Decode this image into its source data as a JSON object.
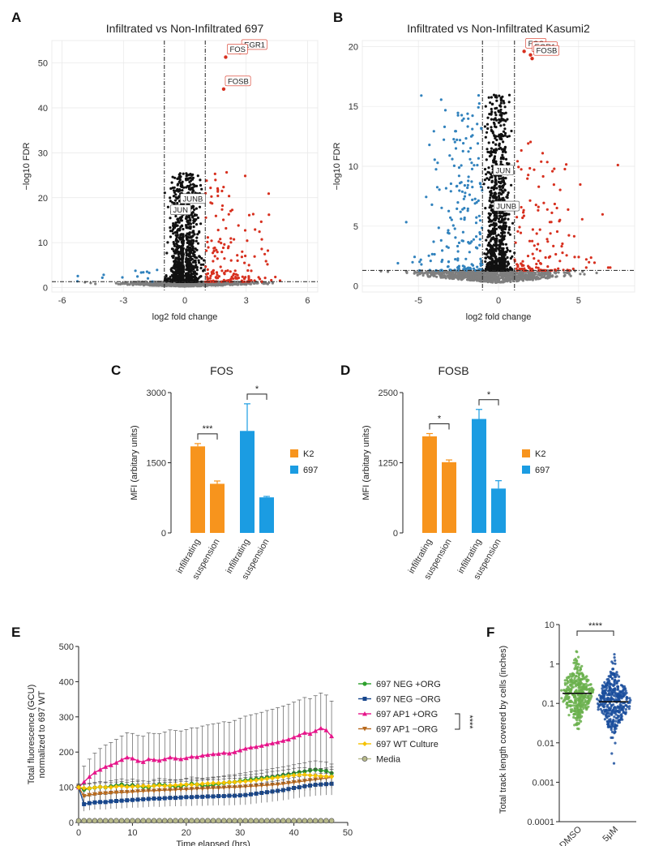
{
  "panel_labels": [
    "A",
    "B",
    "C",
    "D",
    "E",
    "F"
  ],
  "colors": {
    "up": "#d7301f",
    "down": "#3182bd",
    "ns": "#7f7f7f",
    "sig": "#111111",
    "k2": "#f7941d",
    "b697": "#1b9ce2",
    "neg_org": "#2ca02c",
    "neg_noorg": "#17468c",
    "ap1_org": "#e6158a",
    "ap1_noorg": "#b86a1e",
    "wt": "#f5c200",
    "media": "#b7b98a",
    "dmso": "#6ab04c",
    "fivem": "#1a4d9c"
  },
  "chart_data": [
    {
      "id": "A",
      "type": "scatter",
      "title": "Infiltrated vs Non-Infiltrated 697",
      "xlabel": "log2 fold change",
      "ylabel": "−log10 FDR",
      "xlim": [
        -6.5,
        6.5
      ],
      "ylim": [
        -1,
        55
      ],
      "xticks": [
        -6,
        -3,
        0,
        3,
        6
      ],
      "yticks": [
        0,
        10,
        20,
        30,
        40,
        50
      ],
      "fc_cutoff": 1,
      "fdr_cutoff": 1.3,
      "gene_labels": [
        {
          "gene": "EGR1",
          "x": 2.7,
          "y": 52.3,
          "color": "red"
        },
        {
          "gene": "FOS",
          "x": 2.0,
          "y": 51.3,
          "color": "red"
        },
        {
          "gene": "FOSB",
          "x": 1.9,
          "y": 44.2,
          "color": "red"
        },
        {
          "gene": "JUNB",
          "x": 0.4,
          "y": 18.0,
          "color": "black"
        },
        {
          "gene": "JUN",
          "x": -0.2,
          "y": 15.5,
          "color": "black"
        }
      ]
    },
    {
      "id": "B",
      "type": "scatter",
      "title": "Infiltrated vs Non-Infiltrated Kasumi2",
      "xlabel": "log2 fold change",
      "ylabel": "−log10 FDR",
      "xlim": [
        -8.5,
        8.5
      ],
      "ylim": [
        -0.5,
        20.5
      ],
      "xticks": [
        -5,
        0,
        5
      ],
      "yticks": [
        0,
        5,
        10,
        15,
        20
      ],
      "fc_cutoff": 1,
      "fdr_cutoff": 1.3,
      "gene_labels": [
        {
          "gene": "FOS",
          "x": 1.6,
          "y": 19.6,
          "color": "red"
        },
        {
          "gene": "EGR1",
          "x": 2.0,
          "y": 19.3,
          "color": "red"
        },
        {
          "gene": "FOSB",
          "x": 2.1,
          "y": 19.0,
          "color": "red"
        },
        {
          "gene": "JUN",
          "x": 0.3,
          "y": 9.0,
          "color": "black"
        },
        {
          "gene": "JUNB",
          "x": 0.5,
          "y": 6.0,
          "color": "black"
        }
      ]
    },
    {
      "id": "C",
      "type": "bar",
      "title": "FOS",
      "ylabel": "MFI (arbitary units)",
      "ylim": [
        0,
        3000
      ],
      "yticks": [
        0,
        1500,
        3000
      ],
      "categories": [
        "infiltrating",
        "suspension",
        "infiltrating",
        "suspension"
      ],
      "values": [
        1850,
        1050,
        2180,
        760
      ],
      "errors": [
        60,
        60,
        580,
        20
      ],
      "groups": [
        "K2",
        "K2",
        "697",
        "697"
      ],
      "legend": [
        "K2",
        "697"
      ],
      "significance": [
        {
          "pair": [
            0,
            1
          ],
          "label": "***"
        },
        {
          "pair": [
            2,
            3
          ],
          "label": "*"
        }
      ]
    },
    {
      "id": "D",
      "type": "bar",
      "title": "FOSB",
      "ylabel": "MFI (arbitary units)",
      "ylim": [
        0,
        2500
      ],
      "yticks": [
        0,
        1250,
        2500
      ],
      "categories": [
        "infiltrating",
        "suspension",
        "infiltrating",
        "suspension"
      ],
      "values": [
        1720,
        1260,
        2030,
        790
      ],
      "errors": [
        50,
        40,
        170,
        140
      ],
      "groups": [
        "K2",
        "K2",
        "697",
        "697"
      ],
      "legend": [
        "K2",
        "697"
      ],
      "significance": [
        {
          "pair": [
            0,
            1
          ],
          "label": "*"
        },
        {
          "pair": [
            2,
            3
          ],
          "label": "*"
        }
      ]
    },
    {
      "id": "E",
      "type": "line",
      "xlabel": "Time elapsed (hrs)",
      "ylabel_lines": [
        "Total fluorescence (GCU)",
        "normalized to 697 WT"
      ],
      "xlim": [
        0,
        50
      ],
      "ylim": [
        0,
        500
      ],
      "xticks": [
        0,
        10,
        20,
        30,
        40,
        50
      ],
      "yticks": [
        0,
        100,
        200,
        300,
        400,
        500
      ],
      "x": [
        0,
        1,
        2,
        3,
        4,
        5,
        6,
        7,
        8,
        9,
        10,
        11,
        12,
        13,
        14,
        15,
        16,
        17,
        18,
        19,
        20,
        21,
        22,
        23,
        24,
        25,
        26,
        27,
        28,
        29,
        30,
        31,
        32,
        33,
        34,
        35,
        36,
        37,
        38,
        39,
        40,
        41,
        42,
        43,
        44,
        45,
        46,
        47
      ],
      "significance": "****",
      "series": [
        {
          "name": "697 NEG +ORG",
          "marker": "circle",
          "values": [
            100,
            93,
            97,
            99,
            101,
            100,
            103,
            105,
            108,
            104,
            106,
            103,
            101,
            100,
            105,
            108,
            106,
            104,
            102,
            103,
            107,
            110,
            108,
            105,
            104,
            107,
            110,
            112,
            114,
            115,
            118,
            120,
            122,
            124,
            126,
            128,
            130,
            132,
            135,
            137,
            140,
            143,
            145,
            148,
            150,
            148,
            146,
            140
          ],
          "errors": [
            8,
            15,
            15,
            15,
            15,
            15,
            16,
            16,
            16,
            16,
            17,
            17,
            17,
            17,
            17,
            18,
            18,
            18,
            18,
            18,
            19,
            19,
            19,
            19,
            20,
            20,
            20,
            20,
            21,
            21,
            21,
            21,
            22,
            22,
            22,
            22,
            23,
            23,
            23,
            24,
            24,
            24,
            25,
            25,
            25,
            25,
            26,
            26
          ]
        },
        {
          "name": "697 NEG −ORG",
          "marker": "square",
          "values": [
            100,
            52,
            55,
            57,
            58,
            58,
            60,
            61,
            62,
            63,
            64,
            65,
            66,
            67,
            68,
            68,
            69,
            70,
            70,
            71,
            72,
            72,
            73,
            73,
            74,
            74,
            75,
            75,
            76,
            76,
            77,
            78,
            80,
            82,
            84,
            86,
            88,
            90,
            92,
            95,
            98,
            100,
            103,
            105,
            107,
            108,
            109,
            110
          ],
          "errors": [
            5,
            20,
            20,
            20,
            21,
            21,
            21,
            22,
            22,
            22,
            22,
            23,
            23,
            23,
            23,
            24,
            24,
            24,
            24,
            25,
            25,
            25,
            25,
            26,
            26,
            26,
            26,
            27,
            27,
            27,
            27,
            28,
            28,
            28,
            28,
            29,
            29,
            29,
            29,
            30,
            30,
            30,
            30,
            31,
            31,
            31,
            31,
            32
          ]
        },
        {
          "name": "697 AP1 +ORG",
          "marker": "triangle",
          "values": [
            100,
            115,
            130,
            142,
            150,
            158,
            163,
            170,
            178,
            185,
            182,
            175,
            172,
            180,
            178,
            176,
            180,
            185,
            182,
            180,
            183,
            187,
            186,
            190,
            192,
            194,
            195,
            198,
            196,
            200,
            205,
            210,
            213,
            215,
            218,
            222,
            225,
            228,
            232,
            236,
            242,
            248,
            255,
            252,
            260,
            268,
            262,
            245
          ],
          "errors": [
            10,
            45,
            50,
            55,
            60,
            62,
            64,
            66,
            68,
            70,
            71,
            72,
            73,
            74,
            75,
            76,
            77,
            78,
            79,
            80,
            81,
            82,
            83,
            84,
            85,
            86,
            87,
            88,
            89,
            90,
            91,
            92,
            93,
            94,
            95,
            96,
            97,
            98,
            99,
            100,
            100,
            100,
            100,
            100,
            100,
            100,
            100,
            100
          ]
        },
        {
          "name": "697 AP1 −ORG",
          "marker": "triangle-down",
          "values": [
            100,
            75,
            78,
            80,
            82,
            83,
            84,
            85,
            86,
            86,
            87,
            88,
            89,
            90,
            90,
            91,
            92,
            92,
            93,
            94,
            94,
            95,
            96,
            96,
            97,
            98,
            98,
            99,
            100,
            100,
            101,
            102,
            103,
            104,
            105,
            106,
            107,
            108,
            110,
            112,
            114,
            116,
            118,
            120,
            122,
            124,
            126,
            128
          ],
          "errors": [
            6,
            18,
            18,
            18,
            19,
            19,
            19,
            20,
            20,
            20,
            20,
            21,
            21,
            21,
            21,
            22,
            22,
            22,
            22,
            23,
            23,
            23,
            23,
            24,
            24,
            24,
            24,
            25,
            25,
            25,
            25,
            26,
            26,
            26,
            26,
            27,
            27,
            27,
            27,
            28,
            28,
            28,
            28,
            29,
            29,
            29,
            29,
            30
          ]
        },
        {
          "name": "697 WT Culture",
          "marker": "diamond",
          "values": [
            100,
            98,
            97,
            99,
            101,
            100,
            100,
            102,
            103,
            101,
            102,
            103,
            104,
            103,
            104,
            105,
            104,
            105,
            106,
            107,
            108,
            107,
            108,
            110,
            111,
            112,
            112,
            113,
            114,
            115,
            116,
            117,
            118,
            120,
            122,
            124,
            126,
            128,
            130,
            132,
            134,
            135,
            136,
            134,
            133,
            132,
            131,
            130
          ],
          "errors": [
            5,
            12,
            12,
            12,
            12,
            13,
            13,
            13,
            13,
            13,
            14,
            14,
            14,
            14,
            14,
            15,
            15,
            15,
            15,
            15,
            16,
            16,
            16,
            16,
            16,
            17,
            17,
            17,
            17,
            17,
            18,
            18,
            18,
            18,
            18,
            19,
            19,
            19,
            19,
            19,
            20,
            20,
            20,
            20,
            20,
            21,
            21,
            21
          ]
        },
        {
          "name": "Media",
          "marker": "circle-open",
          "values": [
            5,
            5,
            5,
            5,
            5,
            5,
            5,
            5,
            5,
            5,
            5,
            5,
            5,
            5,
            5,
            5,
            5,
            5,
            5,
            5,
            5,
            5,
            5,
            5,
            5,
            5,
            5,
            5,
            5,
            5,
            5,
            5,
            5,
            5,
            5,
            5,
            5,
            5,
            5,
            5,
            5,
            5,
            5,
            5,
            5,
            5,
            5,
            5
          ],
          "errors": []
        }
      ]
    },
    {
      "id": "F",
      "type": "scatter",
      "scale": "log",
      "ylabel": "Total track length covered by cells (inches)",
      "ylim": [
        0.0001,
        10
      ],
      "yticks": [
        10,
        1,
        0.1,
        0.01,
        0.001,
        0.0001
      ],
      "ytick_labels": [
        "10",
        "1",
        "0.1",
        "0.01",
        "0.001",
        "0.0001"
      ],
      "categories": [
        "DMSO",
        "5μM"
      ],
      "medians": [
        0.18,
        0.11
      ],
      "significance": "****"
    }
  ]
}
